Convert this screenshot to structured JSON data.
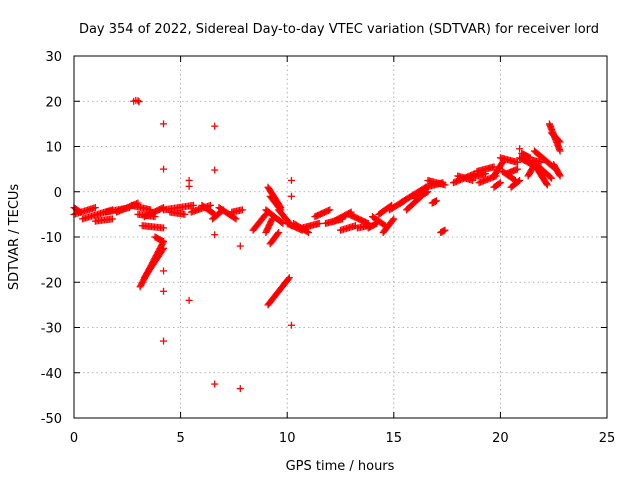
{
  "chart_data": {
    "type": "scatter",
    "title": "Day 354 of 2022, Sidereal Day-to-day VTEC variation (SDTVAR) for receiver lord",
    "xlabel": "GPS time / hours",
    "ylabel": "SDTVAR / TECUs",
    "xlim": [
      0,
      25
    ],
    "ylim": [
      -50,
      30
    ],
    "x_ticks": [
      0,
      5,
      10,
      15,
      20,
      25
    ],
    "y_ticks": [
      -50,
      -40,
      -30,
      -20,
      -10,
      0,
      10,
      20,
      30
    ],
    "grid": true,
    "marker": "plus",
    "color": "#ff0000",
    "segments": [
      {
        "x0": 0.0,
        "y0": -3.5,
        "x1": 0.3,
        "y1": -4.5
      },
      {
        "x0": 0.0,
        "y0": -5.0,
        "x1": 1.0,
        "y1": -3.5
      },
      {
        "x0": 0.4,
        "y0": -6.0,
        "x1": 1.8,
        "y1": -4.0
      },
      {
        "x0": 1.0,
        "y0": -6.5,
        "x1": 1.8,
        "y1": -6.0
      },
      {
        "x0": 1.5,
        "y0": -4.5,
        "x1": 2.6,
        "y1": -3.5
      },
      {
        "x0": 2.0,
        "y0": -4.5,
        "x1": 3.0,
        "y1": -2.5
      },
      {
        "x0": 2.7,
        "y0": -3.0,
        "x1": 3.6,
        "y1": -4.0
      },
      {
        "x0": 3.0,
        "y0": -5.0,
        "x1": 3.8,
        "y1": -5.5
      },
      {
        "x0": 3.3,
        "y0": -5.5,
        "x1": 4.2,
        "y1": -3.5
      },
      {
        "x0": 3.2,
        "y0": -7.5,
        "x1": 4.2,
        "y1": -8.0
      },
      {
        "x0": 3.1,
        "y0": -21.0,
        "x1": 4.2,
        "y1": -11.0
      },
      {
        "x0": 3.3,
        "y0": -19.0,
        "x1": 4.2,
        "y1": -12.5
      },
      {
        "x0": 3.8,
        "y0": -10.0,
        "x1": 4.2,
        "y1": -11.0
      },
      {
        "x0": 4.2,
        "y0": -4.0,
        "x1": 5.6,
        "y1": -3.0
      },
      {
        "x0": 4.5,
        "y0": -4.5,
        "x1": 5.2,
        "y1": -5.0
      },
      {
        "x0": 5.5,
        "y0": -4.5,
        "x1": 6.4,
        "y1": -3.0
      },
      {
        "x0": 6.0,
        "y0": -3.0,
        "x1": 6.6,
        "y1": -5.0
      },
      {
        "x0": 6.5,
        "y0": -6.0,
        "x1": 7.0,
        "y1": -4.0
      },
      {
        "x0": 6.8,
        "y0": -3.5,
        "x1": 7.6,
        "y1": -6.0
      },
      {
        "x0": 7.4,
        "y0": -4.5,
        "x1": 7.9,
        "y1": -4.0
      },
      {
        "x0": 8.4,
        "y0": -8.5,
        "x1": 9.0,
        "y1": -5.0
      },
      {
        "x0": 9.0,
        "y0": -4.0,
        "x1": 9.8,
        "y1": -7.0
      },
      {
        "x0": 9.0,
        "y0": -9.0,
        "x1": 9.3,
        "y1": -6.0
      },
      {
        "x0": 9.1,
        "y0": 1.0,
        "x1": 9.7,
        "y1": -3.5
      },
      {
        "x0": 9.2,
        "y0": -1.0,
        "x1": 9.7,
        "y1": -4.0
      },
      {
        "x0": 9.2,
        "y0": -11.5,
        "x1": 9.6,
        "y1": -9.0
      },
      {
        "x0": 9.1,
        "y0": -25.0,
        "x1": 10.1,
        "y1": -19.0
      },
      {
        "x0": 9.6,
        "y0": -4.0,
        "x1": 10.2,
        "y1": -7.5
      },
      {
        "x0": 10.0,
        "y0": -7.0,
        "x1": 10.7,
        "y1": -8.5
      },
      {
        "x0": 10.3,
        "y0": -7.0,
        "x1": 11.0,
        "y1": -9.0
      },
      {
        "x0": 10.7,
        "y0": -8.0,
        "x1": 11.5,
        "y1": -7.0
      },
      {
        "x0": 11.3,
        "y0": -5.5,
        "x1": 12.0,
        "y1": -4.0
      },
      {
        "x0": 11.8,
        "y0": -7.0,
        "x1": 12.6,
        "y1": -6.0
      },
      {
        "x0": 12.2,
        "y0": -6.5,
        "x1": 13.0,
        "y1": -4.5
      },
      {
        "x0": 12.5,
        "y0": -8.5,
        "x1": 13.2,
        "y1": -7.5
      },
      {
        "x0": 12.9,
        "y0": -5.0,
        "x1": 13.8,
        "y1": -7.0
      },
      {
        "x0": 13.3,
        "y0": -8.0,
        "x1": 13.8,
        "y1": -7.5
      },
      {
        "x0": 13.8,
        "y0": -8.0,
        "x1": 14.2,
        "y1": -7.0
      },
      {
        "x0": 14.0,
        "y0": -5.5,
        "x1": 14.6,
        "y1": -7.5
      },
      {
        "x0": 14.3,
        "y0": -5.0,
        "x1": 14.9,
        "y1": -3.0
      },
      {
        "x0": 14.5,
        "y0": -9.0,
        "x1": 15.0,
        "y1": -6.0
      },
      {
        "x0": 14.8,
        "y0": -4.0,
        "x1": 15.5,
        "y1": -2.0
      },
      {
        "x0": 15.3,
        "y0": -2.5,
        "x1": 16.5,
        "y1": 1.0
      },
      {
        "x0": 15.6,
        "y0": -4.0,
        "x1": 16.4,
        "y1": -0.5
      },
      {
        "x0": 16.0,
        "y0": -1.5,
        "x1": 16.6,
        "y1": 0.0
      },
      {
        "x0": 16.5,
        "y0": 1.0,
        "x1": 17.3,
        "y1": 2.0
      },
      {
        "x0": 16.6,
        "y0": 2.5,
        "x1": 17.4,
        "y1": 1.5
      },
      {
        "x0": 16.8,
        "y0": -2.5,
        "x1": 17.0,
        "y1": -2.0
      },
      {
        "x0": 17.2,
        "y0": -9.0,
        "x1": 17.4,
        "y1": -8.5
      },
      {
        "x0": 17.8,
        "y0": 2.0,
        "x1": 18.8,
        "y1": 4.0
      },
      {
        "x0": 18.0,
        "y0": 3.5,
        "x1": 18.7,
        "y1": 2.5
      },
      {
        "x0": 18.5,
        "y0": 3.0,
        "x1": 19.3,
        "y1": 4.0
      },
      {
        "x0": 18.9,
        "y0": 4.5,
        "x1": 19.7,
        "y1": 5.5
      },
      {
        "x0": 19.0,
        "y0": 2.0,
        "x1": 19.8,
        "y1": 3.5
      },
      {
        "x0": 19.7,
        "y0": 3.5,
        "x1": 20.1,
        "y1": 6.5
      },
      {
        "x0": 19.7,
        "y0": 1.0,
        "x1": 20.0,
        "y1": 2.0
      },
      {
        "x0": 20.0,
        "y0": 7.5,
        "x1": 20.8,
        "y1": 6.5
      },
      {
        "x0": 20.1,
        "y0": 4.5,
        "x1": 20.7,
        "y1": 2.5
      },
      {
        "x0": 20.3,
        "y0": 4.0,
        "x1": 20.8,
        "y1": 5.0
      },
      {
        "x0": 20.5,
        "y0": 1.0,
        "x1": 20.9,
        "y1": 2.5
      },
      {
        "x0": 20.9,
        "y0": 7.5,
        "x1": 21.5,
        "y1": 6.0
      },
      {
        "x0": 21.0,
        "y0": 8.5,
        "x1": 21.4,
        "y1": 7.5
      },
      {
        "x0": 21.3,
        "y0": 3.5,
        "x1": 21.6,
        "y1": 6.0
      },
      {
        "x0": 21.5,
        "y0": 7.0,
        "x1": 21.9,
        "y1": 6.5
      },
      {
        "x0": 21.6,
        "y0": 6.0,
        "x1": 22.2,
        "y1": 1.5
      },
      {
        "x0": 21.6,
        "y0": 9.0,
        "x1": 22.6,
        "y1": 5.0
      },
      {
        "x0": 21.8,
        "y0": 5.5,
        "x1": 22.4,
        "y1": 3.0
      },
      {
        "x0": 22.3,
        "y0": 15.0,
        "x1": 22.8,
        "y1": 9.0
      },
      {
        "x0": 22.4,
        "y0": 13.0,
        "x1": 22.8,
        "y1": 11.0
      },
      {
        "x0": 22.5,
        "y0": 6.0,
        "x1": 22.8,
        "y1": 3.5
      }
    ],
    "points": [
      {
        "x": 2.8,
        "y": 20.0
      },
      {
        "x": 2.9,
        "y": 20.2
      },
      {
        "x": 3.0,
        "y": 20.1
      },
      {
        "x": 3.05,
        "y": 19.9
      },
      {
        "x": 4.2,
        "y": 15.0
      },
      {
        "x": 4.2,
        "y": 5.0
      },
      {
        "x": 4.2,
        "y": -17.5
      },
      {
        "x": 4.2,
        "y": -22.0
      },
      {
        "x": 4.2,
        "y": -33.0
      },
      {
        "x": 5.4,
        "y": 2.5
      },
      {
        "x": 5.4,
        "y": 1.2
      },
      {
        "x": 5.4,
        "y": -24.0
      },
      {
        "x": 6.6,
        "y": 14.5
      },
      {
        "x": 6.6,
        "y": 4.8
      },
      {
        "x": 6.6,
        "y": -9.5
      },
      {
        "x": 6.6,
        "y": -42.5
      },
      {
        "x": 7.8,
        "y": -12.0
      },
      {
        "x": 7.8,
        "y": -43.5
      },
      {
        "x": 10.2,
        "y": 2.5
      },
      {
        "x": 10.2,
        "y": -1.0
      },
      {
        "x": 10.2,
        "y": -29.5
      },
      {
        "x": 20.9,
        "y": 9.5
      }
    ]
  }
}
